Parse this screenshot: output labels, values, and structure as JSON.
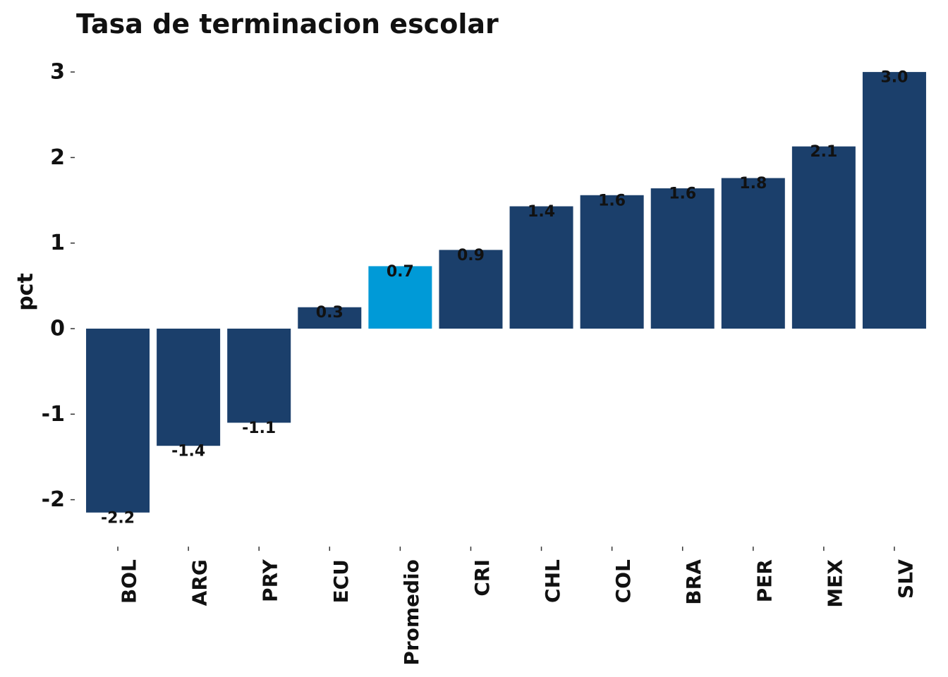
{
  "chart_data": {
    "type": "bar",
    "title": "Tasa de terminacion escolar",
    "xlabel": "",
    "ylabel": "pct",
    "categories": [
      "BOL",
      "ARG",
      "PRY",
      "ECU",
      "Promedio",
      "CRI",
      "CHL",
      "COL",
      "BRA",
      "PER",
      "MEX",
      "SLV"
    ],
    "values": [
      -2.15,
      -1.37,
      -1.1,
      0.25,
      0.73,
      0.92,
      1.43,
      1.56,
      1.64,
      1.76,
      2.13,
      3.0
    ],
    "value_labels": [
      "-2.2",
      "-1.4",
      "-1.1",
      "0.3",
      "0.7",
      "0.9",
      "1.4",
      "1.6",
      "1.6",
      "1.8",
      "2.1",
      "3.0"
    ],
    "ylim": [
      -2.4,
      3.25
    ],
    "yticks": [
      -2,
      -1,
      0,
      1,
      2,
      3
    ],
    "ytick_labels": [
      "-2",
      "-1",
      "0",
      "1",
      "2",
      "3"
    ],
    "grid": false,
    "legend": "none",
    "colors": {
      "default": "#1b3f6b",
      "highlight": "#009ad7",
      "highlight_category": "Promedio"
    }
  }
}
